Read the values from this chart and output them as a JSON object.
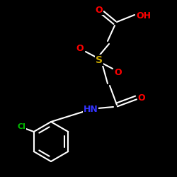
{
  "bg_color": "#000000",
  "bond_color": "#ffffff",
  "atom_colors": {
    "O": "#ff0000",
    "S": "#ccaa00",
    "N": "#3333ff",
    "Cl": "#00bb00",
    "C": "#ffffff",
    "H": "#ffffff"
  },
  "lw": 1.5,
  "font_size": 9
}
